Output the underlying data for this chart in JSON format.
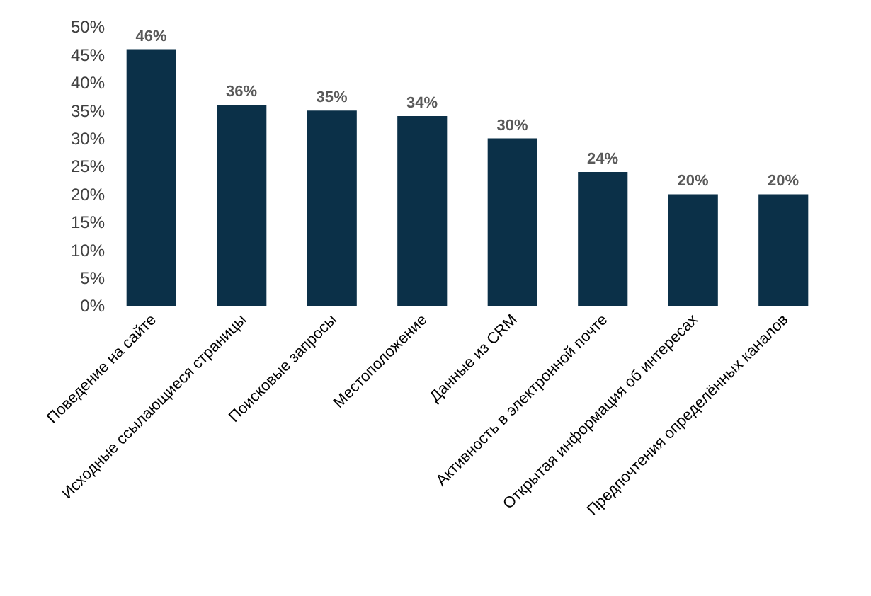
{
  "chart_data": {
    "type": "bar",
    "categories": [
      "Поведение на сайте",
      "Исходные ссылающиеся страницы",
      "Поисковые запросы",
      "Местоположение",
      "Данные из CRM",
      "Активность в электронной почте",
      "Открытая информация об интересах",
      "Предпочтения определённых каналов"
    ],
    "values": [
      46,
      36,
      35,
      34,
      30,
      24,
      20,
      20
    ],
    "value_labels": [
      "46%",
      "36%",
      "35%",
      "34%",
      "30%",
      "24%",
      "20%",
      "20%"
    ],
    "color": "#0b3048",
    "ylim": [
      0,
      50
    ],
    "yticks": [
      {
        "value": 0,
        "label": "0%"
      },
      {
        "value": 5,
        "label": "5%"
      },
      {
        "value": 10,
        "label": "10%"
      },
      {
        "value": 15,
        "label": "15%"
      },
      {
        "value": 20,
        "label": "20%"
      },
      {
        "value": 25,
        "label": "25%"
      },
      {
        "value": 30,
        "label": "30%"
      },
      {
        "value": 35,
        "label": "35%"
      },
      {
        "value": 40,
        "label": "40%"
      },
      {
        "value": 45,
        "label": "45%"
      },
      {
        "value": 50,
        "label": "50%"
      }
    ]
  }
}
